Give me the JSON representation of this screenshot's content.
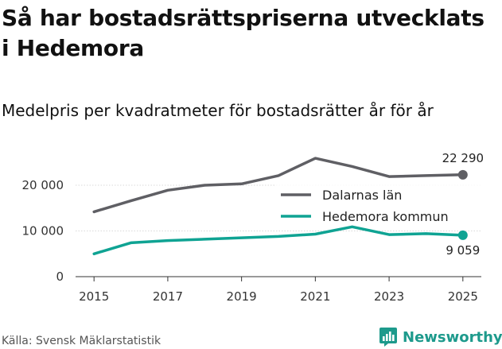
{
  "chart_data": {
    "type": "line",
    "title": "Så har bostadsrättspriserna utvecklats i Hedemora",
    "subtitle": "Medelpris per kvadratmeter för bostadsrätter år för år",
    "source": "Källa: Svensk Mäklarstatistik",
    "brand": "Newsworthy",
    "x": [
      2015,
      2016,
      2017,
      2018,
      2019,
      2020,
      2021,
      2022,
      2023,
      2024,
      2025
    ],
    "x_ticks": [
      2015,
      2017,
      2019,
      2021,
      2023,
      2025
    ],
    "y_ticks": [
      0,
      10000,
      20000
    ],
    "y_tick_labels": [
      "0",
      "10 000",
      "20 000"
    ],
    "ylim": [
      0,
      25000
    ],
    "xlabel": "",
    "ylabel": "",
    "grid": true,
    "legend_position": "center-right",
    "series": [
      {
        "name": "Dalarnas län",
        "color": "#5f5f64",
        "values": [
          14200,
          16600,
          18900,
          20000,
          20300,
          22100,
          25900,
          24100,
          21900,
          22100,
          22290
        ],
        "end_label": "22 290"
      },
      {
        "name": "Hedemora kommun",
        "color": "#0fa393",
        "values": [
          5000,
          7400,
          7900,
          8200,
          8500,
          8800,
          9300,
          10900,
          9200,
          9400,
          9059
        ],
        "end_label": "9 059"
      }
    ]
  }
}
